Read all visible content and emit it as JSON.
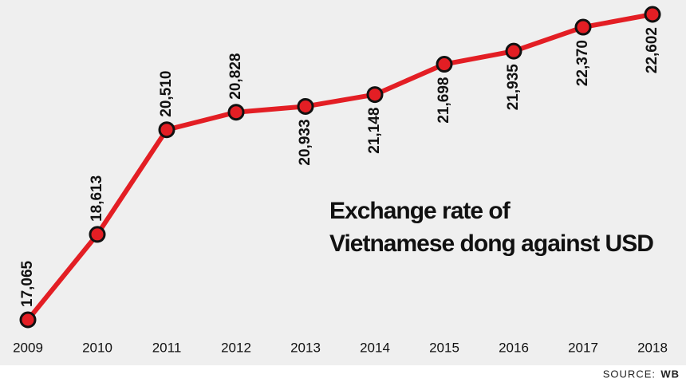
{
  "chart_data": {
    "type": "line",
    "title": [
      "Exchange rate of",
      "Vietnamese dong against USD"
    ],
    "x": [
      2009,
      2010,
      2011,
      2012,
      2013,
      2014,
      2015,
      2016,
      2017,
      2018
    ],
    "values": [
      17065,
      18613,
      20510,
      20828,
      20933,
      21148,
      21698,
      21935,
      22370,
      22602
    ],
    "value_labels": [
      "17,065",
      "18,613",
      "20,510",
      "20,828",
      "20,933",
      "21,148",
      "21,698",
      "21,935",
      "22,370",
      "22,602"
    ],
    "color": "#e31e24",
    "source": {
      "label": "SOURCE:",
      "name": "WB"
    }
  }
}
